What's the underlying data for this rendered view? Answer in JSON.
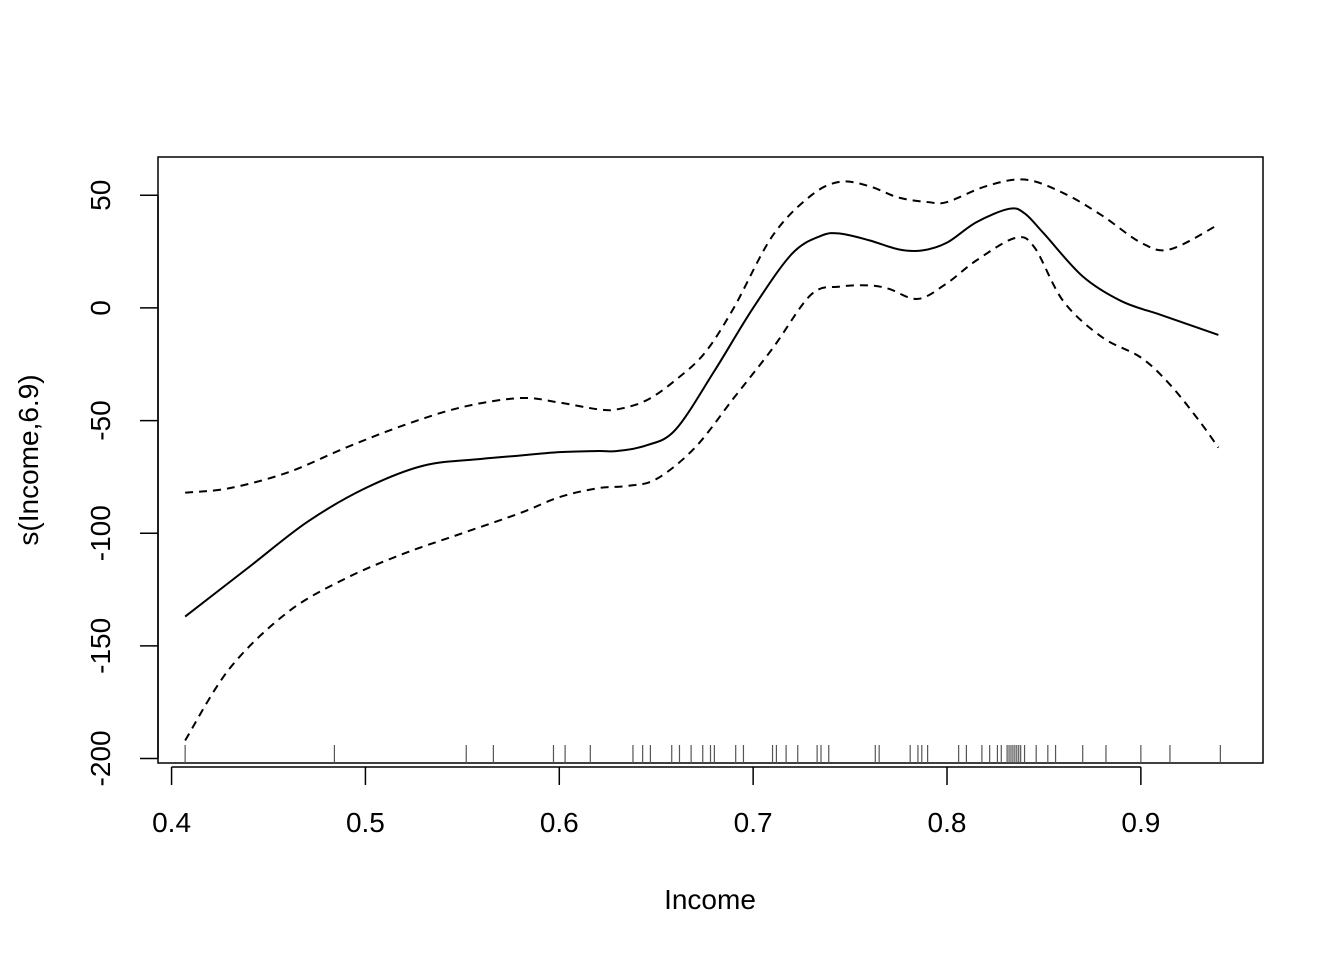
{
  "chart_data": {
    "type": "line",
    "xlabel": "Income",
    "ylabel": "s(Income,6.9)",
    "xlim": [
      0.393,
      0.963
    ],
    "ylim": [
      -202,
      67
    ],
    "x_ticks": [
      0.4,
      0.5,
      0.6,
      0.7,
      0.8,
      0.9
    ],
    "x_tick_labels": [
      "0.4",
      "0.5",
      "0.6",
      "0.7",
      "0.8",
      "0.9"
    ],
    "y_ticks": [
      -200,
      -150,
      -100,
      -50,
      0,
      50
    ],
    "y_tick_labels": [
      "-200",
      "-150",
      "-100",
      "-50",
      "0",
      "50"
    ],
    "grid": false,
    "legend": "none",
    "series": [
      {
        "role": "fit",
        "style": "solid",
        "x": [
          0.407,
          0.44,
          0.47,
          0.5,
          0.53,
          0.56,
          0.58,
          0.6,
          0.62,
          0.63,
          0.645,
          0.66,
          0.68,
          0.7,
          0.72,
          0.735,
          0.745,
          0.76,
          0.775,
          0.787,
          0.8,
          0.815,
          0.832,
          0.84,
          0.85,
          0.87,
          0.89,
          0.91,
          0.93,
          0.94
        ],
        "y": [
          -137,
          -115,
          -95,
          -80,
          -70,
          -67,
          -65.5,
          -64,
          -63.5,
          -63.5,
          -61,
          -54,
          -28,
          0,
          24,
          32,
          33,
          30,
          26,
          25.5,
          29,
          38,
          44,
          42,
          33,
          14,
          3,
          -3,
          -9,
          -12
        ]
      },
      {
        "role": "upper",
        "style": "dashed",
        "x": [
          0.407,
          0.43,
          0.46,
          0.49,
          0.52,
          0.55,
          0.58,
          0.6,
          0.62,
          0.63,
          0.645,
          0.66,
          0.675,
          0.69,
          0.71,
          0.73,
          0.745,
          0.76,
          0.775,
          0.79,
          0.8,
          0.82,
          0.84,
          0.86,
          0.88,
          0.9,
          0.915,
          0.94
        ],
        "y": [
          -82,
          -80,
          -73,
          -62,
          -52,
          -44,
          -40,
          -42,
          -45,
          -45,
          -41,
          -32,
          -20,
          0,
          32,
          50,
          56,
          54,
          49,
          47,
          47,
          54,
          57,
          51,
          41,
          29,
          26,
          37
        ]
      },
      {
        "role": "lower",
        "style": "dashed",
        "x": [
          0.407,
          0.43,
          0.46,
          0.49,
          0.52,
          0.55,
          0.58,
          0.6,
          0.62,
          0.635,
          0.65,
          0.67,
          0.69,
          0.71,
          0.73,
          0.745,
          0.76,
          0.77,
          0.785,
          0.8,
          0.815,
          0.835,
          0.845,
          0.86,
          0.88,
          0.9,
          0.915,
          0.93,
          0.94
        ],
        "y": [
          -192,
          -160,
          -135,
          -120,
          -109,
          -100,
          -91,
          -84,
          -80,
          -79,
          -76,
          -62,
          -40,
          -18,
          6,
          9.5,
          10,
          8.5,
          4,
          11,
          21,
          31,
          27,
          3,
          -13,
          -22,
          -34,
          -50,
          -62
        ]
      }
    ],
    "rug": [
      0.407,
      0.484,
      0.552,
      0.566,
      0.597,
      0.603,
      0.616,
      0.638,
      0.643,
      0.647,
      0.658,
      0.662,
      0.668,
      0.674,
      0.678,
      0.68,
      0.691,
      0.695,
      0.71,
      0.712,
      0.717,
      0.723,
      0.733,
      0.735,
      0.739,
      0.763,
      0.765,
      0.781,
      0.785,
      0.787,
      0.79,
      0.806,
      0.81,
      0.818,
      0.822,
      0.826,
      0.828,
      0.831,
      0.832,
      0.833,
      0.834,
      0.835,
      0.836,
      0.837,
      0.838,
      0.84,
      0.846,
      0.852,
      0.856,
      0.87,
      0.882,
      0.9,
      0.915,
      0.941
    ]
  }
}
